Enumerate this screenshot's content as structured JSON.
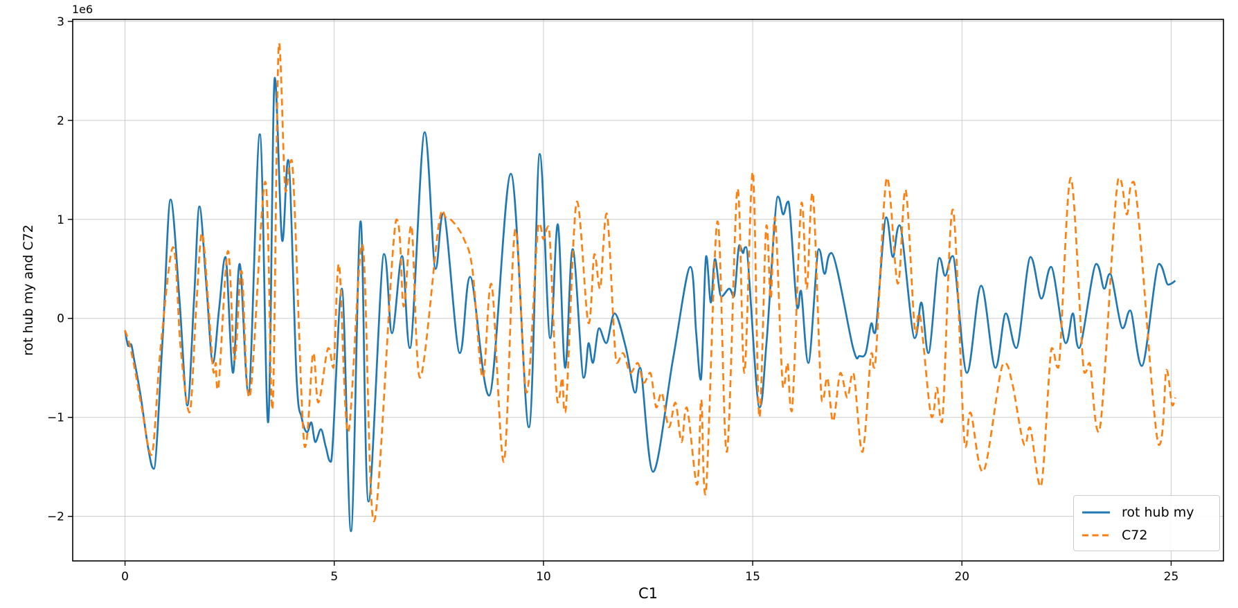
{
  "figure": {
    "xlabel": "C1",
    "ylabel": "rot hub my and C72",
    "offset_text": "1e6",
    "background": "#ffffff",
    "text_color": "#000000",
    "grid_color": "#cccccc",
    "spine_color": "#000000"
  },
  "legend": {
    "position": "lower right",
    "items": [
      {
        "label": "rot hub my",
        "color": "#1f77b4",
        "style": "solid"
      },
      {
        "label": "C72",
        "color": "#ff7f0e",
        "style": "dashed"
      }
    ]
  },
  "chart_data": {
    "type": "line",
    "title": "",
    "xlabel": "C1",
    "ylabel": "rot hub my and C72",
    "unit_note": "y values in units of 1e6 as indicated by axis offset label",
    "xlim": [
      -1.25,
      26.25
    ],
    "ylim": [
      -2.45,
      3.02
    ],
    "x_ticks": [
      0,
      5,
      10,
      15,
      20,
      25
    ],
    "x_tick_labels": [
      "0",
      "5",
      "10",
      "15",
      "20",
      "25"
    ],
    "y_ticks": [
      -2,
      -1,
      0,
      1,
      2,
      3
    ],
    "y_tick_labels": [
      "−2",
      "−1",
      "0",
      "1",
      "2",
      "3"
    ],
    "grid": true,
    "legend_position": "lower right",
    "series": [
      {
        "name": "rot hub my",
        "color": "#1f77b4",
        "style": "solid",
        "linewidth": 2.7,
        "points": [
          [
            0,
            -0.12
          ],
          [
            0.08,
            -0.28
          ],
          [
            0.14,
            -0.26
          ],
          [
            0.22,
            -0.42
          ],
          [
            0.38,
            -0.8
          ],
          [
            0.55,
            -1.3
          ],
          [
            0.69,
            -1.52
          ],
          [
            0.9,
            -0.2
          ],
          [
            1.09,
            1.2
          ],
          [
            1.3,
            0.2
          ],
          [
            1.49,
            -0.88
          ],
          [
            1.65,
            0.2
          ],
          [
            1.78,
            1.13
          ],
          [
            1.95,
            0.3
          ],
          [
            2.1,
            -0.45
          ],
          [
            2.25,
            0.1
          ],
          [
            2.4,
            0.62
          ],
          [
            2.58,
            -0.55
          ],
          [
            2.74,
            0.55
          ],
          [
            2.95,
            -0.75
          ],
          [
            3.22,
            1.86
          ],
          [
            3.42,
            -1.05
          ],
          [
            3.58,
            2.43
          ],
          [
            3.76,
            0.78
          ],
          [
            3.9,
            1.6
          ],
          [
            4.1,
            -0.6
          ],
          [
            4.22,
            -1.0
          ],
          [
            4.35,
            -1.15
          ],
          [
            4.45,
            -1.05
          ],
          [
            4.55,
            -1.25
          ],
          [
            4.68,
            -1.12
          ],
          [
            4.8,
            -1.3
          ],
          [
            4.92,
            -1.45
          ],
          [
            5.18,
            0.3
          ],
          [
            5.4,
            -2.15
          ],
          [
            5.63,
            0.98
          ],
          [
            5.82,
            -1.85
          ],
          [
            6.19,
            0.65
          ],
          [
            6.38,
            -0.15
          ],
          [
            6.62,
            0.63
          ],
          [
            6.81,
            -0.3
          ],
          [
            7.16,
            1.88
          ],
          [
            7.42,
            0.5
          ],
          [
            7.61,
            1.06
          ],
          [
            8.0,
            -0.35
          ],
          [
            8.25,
            0.42
          ],
          [
            8.7,
            -0.78
          ],
          [
            9.22,
            1.46
          ],
          [
            9.65,
            -1.1
          ],
          [
            9.91,
            1.66
          ],
          [
            10.16,
            -0.2
          ],
          [
            10.34,
            0.95
          ],
          [
            10.52,
            -0.5
          ],
          [
            10.7,
            0.7
          ],
          [
            10.96,
            -0.6
          ],
          [
            11.08,
            -0.25
          ],
          [
            11.18,
            -0.45
          ],
          [
            11.33,
            -0.1
          ],
          [
            11.5,
            -0.25
          ],
          [
            11.7,
            0.05
          ],
          [
            11.97,
            -0.3
          ],
          [
            12.19,
            -0.75
          ],
          [
            12.31,
            -0.5
          ],
          [
            12.62,
            -1.55
          ],
          [
            13.1,
            -0.4
          ],
          [
            13.51,
            0.52
          ],
          [
            13.65,
            -0.15
          ],
          [
            13.76,
            -0.62
          ],
          [
            13.89,
            0.63
          ],
          [
            14.0,
            0.16
          ],
          [
            14.1,
            0.6
          ],
          [
            14.25,
            0.22
          ],
          [
            14.44,
            0.3
          ],
          [
            14.55,
            0.22
          ],
          [
            14.68,
            0.74
          ],
          [
            14.77,
            0.66
          ],
          [
            14.84,
            0.72
          ],
          [
            15.16,
            -0.9
          ],
          [
            15.33,
            -0.25
          ],
          [
            15.6,
            1.23
          ],
          [
            15.73,
            1.05
          ],
          [
            15.85,
            1.18
          ],
          [
            16.07,
            0.1
          ],
          [
            16.15,
            0.28
          ],
          [
            16.33,
            -0.45
          ],
          [
            16.58,
            0.7
          ],
          [
            16.72,
            0.45
          ],
          [
            16.88,
            0.66
          ],
          [
            17.4,
            -0.3
          ],
          [
            17.55,
            -0.38
          ],
          [
            17.7,
            -0.35
          ],
          [
            17.84,
            -0.05
          ],
          [
            17.92,
            -0.15
          ],
          [
            18.19,
            1.02
          ],
          [
            18.35,
            0.62
          ],
          [
            18.51,
            0.94
          ],
          [
            18.87,
            -0.2
          ],
          [
            19.03,
            0.16
          ],
          [
            19.2,
            -0.35
          ],
          [
            19.46,
            0.61
          ],
          [
            19.6,
            0.43
          ],
          [
            19.78,
            0.63
          ],
          [
            20.12,
            -0.55
          ],
          [
            20.46,
            0.33
          ],
          [
            20.8,
            -0.5
          ],
          [
            21.05,
            0.05
          ],
          [
            21.3,
            -0.3
          ],
          [
            21.64,
            0.62
          ],
          [
            21.9,
            0.2
          ],
          [
            22.13,
            0.52
          ],
          [
            22.48,
            -0.25
          ],
          [
            22.65,
            0.05
          ],
          [
            22.8,
            -0.3
          ],
          [
            23.21,
            0.55
          ],
          [
            23.4,
            0.3
          ],
          [
            23.54,
            0.45
          ],
          [
            23.84,
            -0.1
          ],
          [
            24.02,
            0.08
          ],
          [
            24.3,
            -0.48
          ],
          [
            24.71,
            0.55
          ],
          [
            24.93,
            0.34
          ],
          [
            25.1,
            0.38
          ]
        ]
      },
      {
        "name": "C72",
        "color": "#ff7f0e",
        "style": "dashed",
        "linewidth": 2.7,
        "points": [
          [
            0,
            -0.12
          ],
          [
            0.1,
            -0.25
          ],
          [
            0.22,
            -0.48
          ],
          [
            0.4,
            -0.9
          ],
          [
            0.63,
            -1.38
          ],
          [
            0.85,
            -0.3
          ],
          [
            1.15,
            0.72
          ],
          [
            1.33,
            -0.3
          ],
          [
            1.54,
            -0.95
          ],
          [
            1.7,
            0.1
          ],
          [
            1.84,
            0.86
          ],
          [
            2.0,
            0.1
          ],
          [
            2.12,
            -0.55
          ],
          [
            2.17,
            -0.45
          ],
          [
            2.22,
            -0.72
          ],
          [
            2.46,
            0.68
          ],
          [
            2.62,
            -0.42
          ],
          [
            2.78,
            0.48
          ],
          [
            2.97,
            -0.8
          ],
          [
            3.35,
            1.38
          ],
          [
            3.52,
            -0.92
          ],
          [
            3.68,
            2.78
          ],
          [
            3.84,
            1.28
          ],
          [
            3.98,
            1.6
          ],
          [
            4.3,
            -1.3
          ],
          [
            4.5,
            -0.35
          ],
          [
            4.62,
            -0.85
          ],
          [
            4.86,
            -0.3
          ],
          [
            4.98,
            -0.5
          ],
          [
            5.11,
            0.55
          ],
          [
            5.33,
            -1.15
          ],
          [
            5.67,
            0.75
          ],
          [
            5.95,
            -2.05
          ],
          [
            6.49,
            1.0
          ],
          [
            6.66,
            0.12
          ],
          [
            6.84,
            0.94
          ],
          [
            7.05,
            -0.6
          ],
          [
            7.5,
            0.95
          ],
          [
            7.67,
            1.02
          ],
          [
            7.87,
            0.96
          ],
          [
            8.1,
            0.8
          ],
          [
            8.3,
            0.5
          ],
          [
            8.55,
            -0.6
          ],
          [
            8.75,
            0.35
          ],
          [
            9.05,
            -1.45
          ],
          [
            9.33,
            0.9
          ],
          [
            9.6,
            -0.75
          ],
          [
            9.89,
            0.96
          ],
          [
            10.0,
            0.8
          ],
          [
            10.12,
            0.93
          ],
          [
            10.34,
            -0.85
          ],
          [
            10.45,
            -0.6
          ],
          [
            10.52,
            -0.95
          ],
          [
            10.8,
            1.18
          ],
          [
            11.08,
            -0.05
          ],
          [
            11.22,
            0.65
          ],
          [
            11.35,
            0.3
          ],
          [
            11.51,
            1.06
          ],
          [
            11.75,
            -0.45
          ],
          [
            11.9,
            -0.35
          ],
          [
            12.08,
            -0.55
          ],
          [
            12.25,
            -0.45
          ],
          [
            12.4,
            -0.65
          ],
          [
            12.55,
            -0.55
          ],
          [
            12.7,
            -0.9
          ],
          [
            12.82,
            -0.75
          ],
          [
            13.0,
            -1.1
          ],
          [
            13.15,
            -0.85
          ],
          [
            13.3,
            -1.25
          ],
          [
            13.42,
            -0.9
          ],
          [
            13.67,
            -1.68
          ],
          [
            13.77,
            -0.82
          ],
          [
            13.87,
            -1.78
          ],
          [
            14.16,
            0.98
          ],
          [
            14.38,
            -1.35
          ],
          [
            14.64,
            1.31
          ],
          [
            14.8,
            -0.55
          ],
          [
            15.0,
            1.48
          ],
          [
            15.16,
            -1.0
          ],
          [
            15.33,
            0.94
          ],
          [
            15.43,
            0.2
          ],
          [
            15.53,
            1.02
          ],
          [
            15.73,
            -0.7
          ],
          [
            15.83,
            -0.45
          ],
          [
            15.93,
            -0.94
          ],
          [
            16.17,
            1.17
          ],
          [
            16.29,
            0.3
          ],
          [
            16.43,
            1.27
          ],
          [
            16.66,
            -0.84
          ],
          [
            16.78,
            -0.6
          ],
          [
            16.92,
            -1.04
          ],
          [
            17.1,
            -0.55
          ],
          [
            17.26,
            -0.8
          ],
          [
            17.4,
            -0.55
          ],
          [
            17.62,
            -1.35
          ],
          [
            17.84,
            -0.35
          ],
          [
            17.91,
            -0.5
          ],
          [
            18.21,
            1.42
          ],
          [
            18.47,
            0.35
          ],
          [
            18.65,
            1.3
          ],
          [
            18.89,
            -0.15
          ],
          [
            18.98,
            0.05
          ],
          [
            19.28,
            -1.0
          ],
          [
            19.4,
            -0.7
          ],
          [
            19.52,
            -1.05
          ],
          [
            19.78,
            1.1
          ],
          [
            20.08,
            -1.3
          ],
          [
            20.2,
            -0.95
          ],
          [
            20.5,
            -1.55
          ],
          [
            21.0,
            -0.45
          ],
          [
            21.2,
            -0.65
          ],
          [
            21.5,
            -1.28
          ],
          [
            21.62,
            -1.1
          ],
          [
            21.88,
            -1.7
          ],
          [
            22.15,
            -0.3
          ],
          [
            22.3,
            -0.5
          ],
          [
            22.6,
            1.42
          ],
          [
            22.93,
            -0.55
          ],
          [
            23.05,
            -0.45
          ],
          [
            23.27,
            -1.15
          ],
          [
            23.75,
            1.42
          ],
          [
            23.94,
            1.05
          ],
          [
            24.1,
            1.38
          ],
          [
            24.71,
            -1.28
          ],
          [
            24.89,
            -0.52
          ],
          [
            25.03,
            -0.88
          ],
          [
            25.1,
            -0.8
          ]
        ]
      }
    ]
  }
}
